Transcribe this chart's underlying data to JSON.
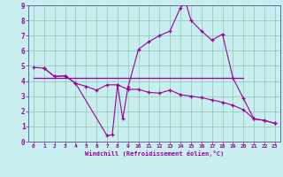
{
  "xlabel": "Windchill (Refroidissement éolien,°C)",
  "xlim": [
    -0.5,
    23.5
  ],
  "ylim": [
    0,
    9
  ],
  "xticks": [
    0,
    1,
    2,
    3,
    4,
    5,
    6,
    7,
    8,
    9,
    10,
    11,
    12,
    13,
    14,
    15,
    16,
    17,
    18,
    19,
    20,
    21,
    22,
    23
  ],
  "yticks": [
    0,
    1,
    2,
    3,
    4,
    5,
    6,
    7,
    8,
    9
  ],
  "bg_color": "#c8eef0",
  "line_color": "#990099",
  "grid_color": "#99ccbb",
  "line_diagonal": {
    "x": [
      0,
      1,
      2,
      3,
      4,
      5,
      6,
      7,
      8,
      9,
      10,
      11,
      12,
      13,
      14,
      15,
      16,
      17,
      18,
      19,
      20,
      21,
      22,
      23
    ],
    "y": [
      4.9,
      4.85,
      4.3,
      4.35,
      3.85,
      3.65,
      3.4,
      3.75,
      3.75,
      3.45,
      3.45,
      3.25,
      3.2,
      3.4,
      3.1,
      3.0,
      2.9,
      2.75,
      2.6,
      2.4,
      2.1,
      1.5,
      1.4,
      1.2
    ]
  },
  "line_horizontal": {
    "x": [
      0,
      20
    ],
    "y": [
      4.2,
      4.2
    ]
  },
  "line_curve": {
    "x": [
      1,
      2,
      3,
      4,
      7,
      7.5,
      8,
      8.5,
      9,
      10,
      11,
      12,
      13,
      14,
      14.5,
      15,
      16,
      17,
      18,
      19,
      20,
      21,
      22,
      23
    ],
    "y": [
      4.85,
      4.3,
      4.35,
      3.85,
      0.4,
      0.45,
      3.75,
      1.5,
      3.6,
      6.1,
      6.6,
      7.0,
      7.3,
      8.85,
      9.2,
      8.0,
      7.3,
      6.7,
      7.1,
      4.2,
      2.85,
      1.5,
      1.4,
      1.2
    ]
  }
}
